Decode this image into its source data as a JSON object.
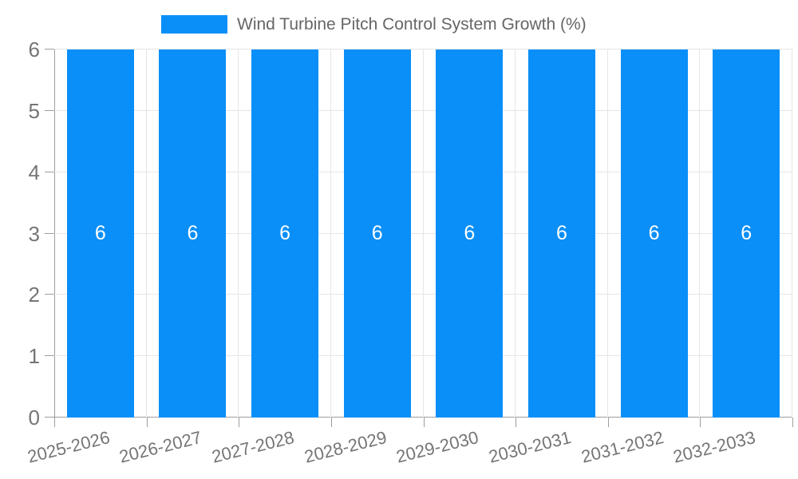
{
  "chart_data": {
    "type": "bar",
    "title": "",
    "legend": {
      "position": "top-center",
      "label": "Wind Turbine Pitch Control System Growth (%)"
    },
    "categories": [
      "2025-2026",
      "2026-2027",
      "2027-2028",
      "2028-2029",
      "2029-2030",
      "2030-2031",
      "2031-2032",
      "2032-2033"
    ],
    "series": [
      {
        "name": "Wind Turbine Pitch Control System Growth (%)",
        "values": [
          6,
          6,
          6,
          6,
          6,
          6,
          6,
          6
        ]
      }
    ],
    "bar_value_labels": [
      "6",
      "6",
      "6",
      "6",
      "6",
      "6",
      "6",
      "6"
    ],
    "xlabel": "",
    "ylabel": "",
    "ylim": [
      0,
      6
    ],
    "yticks": [
      0,
      1,
      2,
      3,
      4,
      5,
      6
    ],
    "grid": true,
    "x_label_rotation_deg": -14
  },
  "colors": {
    "bar": "#0a8ff8",
    "grid": "#e6e6e6",
    "axis": "#9e9e9e",
    "tick_text": "#757575",
    "legend_text": "#666666",
    "bar_label": "#ffffff",
    "background": "#ffffff"
  }
}
